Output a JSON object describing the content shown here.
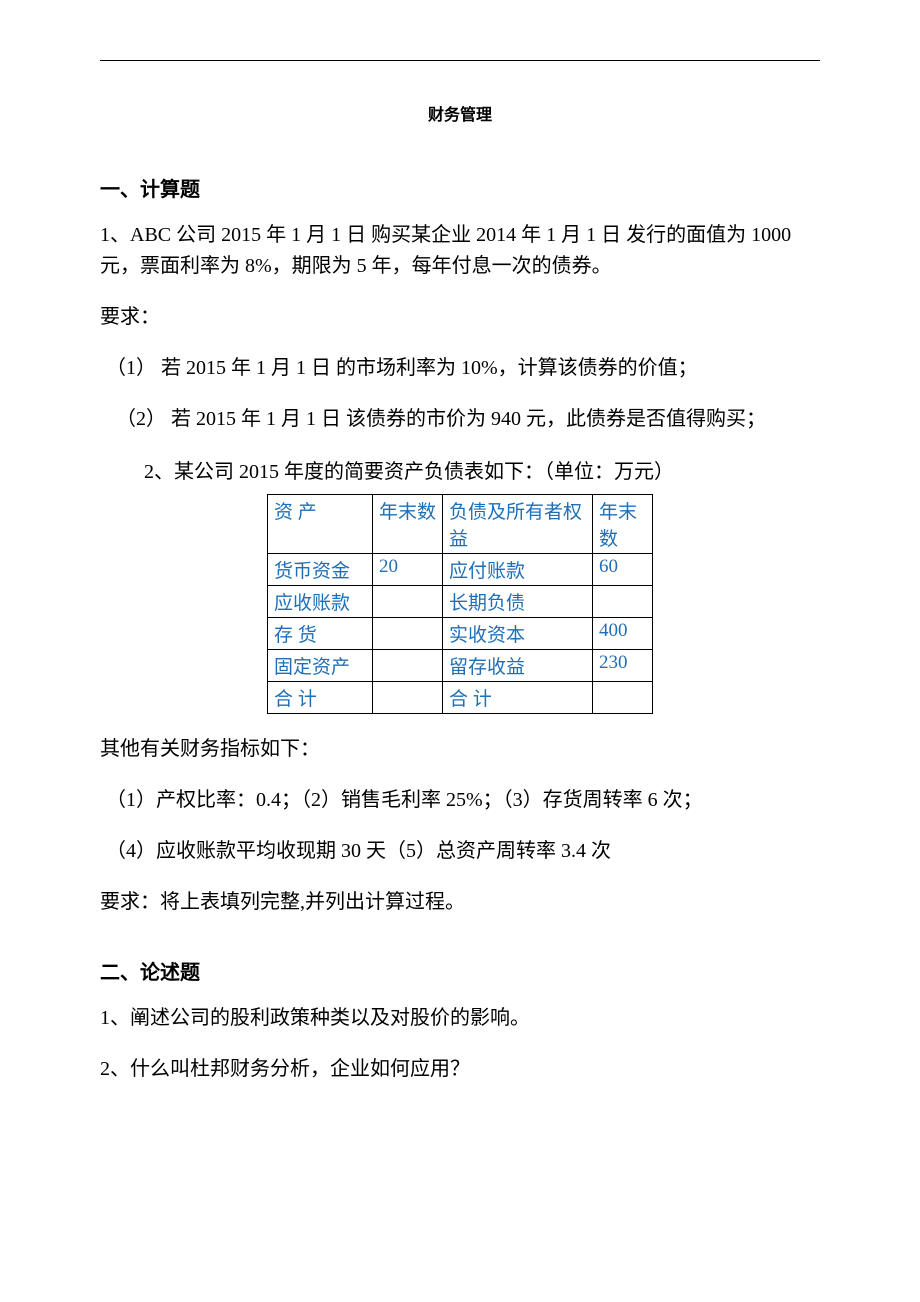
{
  "document": {
    "title": "财务管理",
    "hr_color": "#000000"
  },
  "section1": {
    "heading": "一、计算题",
    "q1_text": "1、ABC 公司 2015 年 1 月 1 日 购买某企业 2014 年 1 月 1 日 发行的面值为 1000 元，票面利率为 8%，期限为 5 年，每年付息一次的债券。",
    "requirement_label": "要求：",
    "q1_sub1": "（1） 若 2015 年 1 月 1 日 的市场利率为 10%，计算该债券的价值；",
    "q1_sub2": "（2）  若 2015 年 1 月 1 日 该债券的市价为 940 元，此债券是否值得购买；",
    "q2_intro": "2、某公司 2015 年度的简要资产负债表如下：（单位：万元）",
    "other_indicator_label": "其他有关财务指标如下：",
    "indicators_line1": "（1）产权比率：0.4；（2）销售毛利率 25%；（3）存货周转率 6 次；",
    "indicators_line2": "（4）应收账款平均收现期 30 天（5）总资产周转率 3.4 次",
    "q2_requirement": "要求：将上表填列完整,并列出计算过程。"
  },
  "table": {
    "text_color": "#1f6fb8",
    "border_color": "#000000",
    "header": {
      "c1": "资 产",
      "c2": "年末数",
      "c3": "负债及所有者权益",
      "c4": "年末数"
    },
    "rows": [
      {
        "c1": "货币资金",
        "c2": "20",
        "c3": "应付账款",
        "c4": "60"
      },
      {
        "c1": "应收账款",
        "c2": "",
        "c3": "长期负债",
        "c4": ""
      },
      {
        "c1": "存  货",
        "c2": "",
        "c3": "实收资本",
        "c4": "400"
      },
      {
        "c1": "固定资产",
        "c2": "",
        "c3": "留存收益",
        "c4": "230"
      },
      {
        "c1": "合  计",
        "c2": "",
        "c3": "合  计",
        "c4": ""
      }
    ]
  },
  "section2": {
    "heading": "二、论述题",
    "q1": "1、阐述公司的股利政策种类以及对股价的影响。",
    "q2": "2、什么叫杜邦财务分析，企业如何应用？"
  }
}
